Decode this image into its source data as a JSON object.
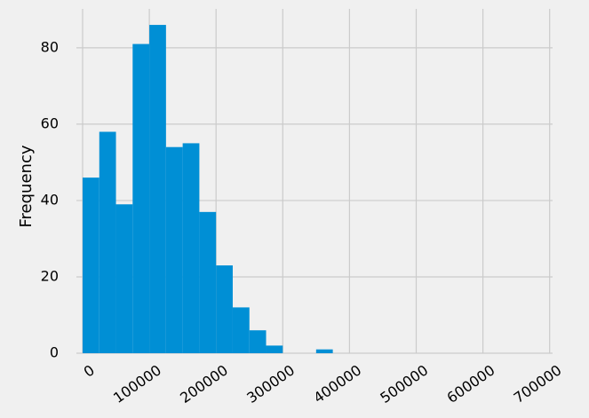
{
  "chart_data": {
    "type": "histogram",
    "ylabel": "Frequency",
    "bins": [
      0,
      25000,
      50000,
      75000,
      100000,
      125000,
      150000,
      175000,
      200000,
      225000,
      250000,
      275000,
      300000,
      325000,
      350000,
      375000
    ],
    "values": [
      46,
      58,
      39,
      81,
      86,
      54,
      55,
      37,
      23,
      12,
      6,
      2,
      0,
      0,
      1
    ],
    "color": "#008fd5",
    "xlim": [
      -9300,
      704400
    ],
    "xticks": [
      0,
      100000,
      200000,
      300000,
      400000,
      500000,
      600000,
      700000
    ],
    "ylim": [
      0,
      90.2
    ],
    "yticks": [
      0,
      20,
      40,
      60,
      80
    ],
    "grid": true
  }
}
